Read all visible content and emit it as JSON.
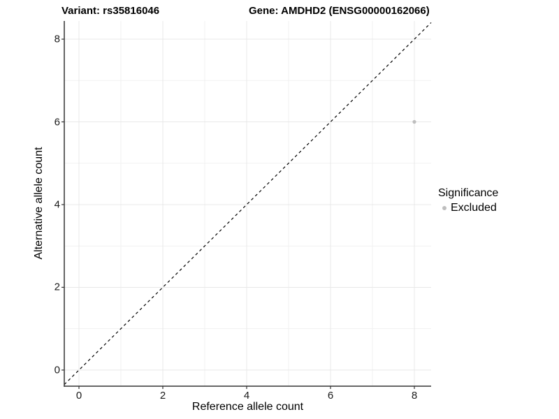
{
  "chart_data": {
    "type": "scatter",
    "title_left": "Variant: rs35816046",
    "title_right": "Gene: AMDHD2 (ENSG00000162066)",
    "xlabel": "Reference allele count",
    "ylabel": "Alternative allele count",
    "xlim": [
      -0.35,
      8.4
    ],
    "ylim": [
      -0.39,
      8.44
    ],
    "xticks": [
      0,
      2,
      4,
      6,
      8
    ],
    "yticks": [
      0,
      2,
      4,
      6,
      8
    ],
    "minor_xticks": [
      1,
      3,
      5,
      7
    ],
    "minor_yticks": [
      1,
      3,
      5,
      7
    ],
    "grid": true,
    "identity_line": {
      "style": "dashed",
      "color": "#000000"
    },
    "points": [
      {
        "x": 8,
        "y": 6,
        "series": "Excluded",
        "color": "#bebebe"
      }
    ],
    "legend": {
      "title": "Significance",
      "position": "right",
      "entries": [
        {
          "label": "Excluded",
          "color": "#bebebe"
        }
      ]
    },
    "colors": {
      "axis_line": "#333333",
      "tick_mark": "#333333",
      "major_grid": "#e8e8e8",
      "minor_grid": "#f1f1f1",
      "point": "#bebebe",
      "text": "#000000"
    }
  }
}
